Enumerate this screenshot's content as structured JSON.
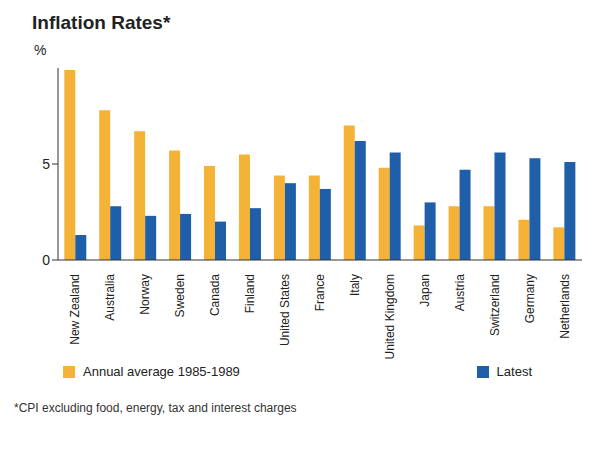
{
  "chart_data": {
    "type": "bar",
    "title": "Inflation Rates*",
    "y_label": "%",
    "footnote": "*CPI excluding food, energy, tax and interest charges",
    "categories": [
      "New Zealand",
      "Australia",
      "Norway",
      "Sweden",
      "Canada",
      "Finland",
      "United States",
      "France",
      "Italy",
      "United Kingdom",
      "Japan",
      "Austria",
      "Switzerland",
      "Germany",
      "Netherlands"
    ],
    "series": [
      {
        "name": "Annual average 1985-1989",
        "color": "#f4b336",
        "values": [
          9.9,
          7.8,
          6.7,
          5.7,
          4.9,
          5.5,
          4.4,
          4.4,
          7.0,
          4.8,
          1.8,
          2.8,
          2.8,
          2.1,
          1.7
        ]
      },
      {
        "name": "Latest",
        "color": "#1f5ea8",
        "values": [
          1.3,
          2.8,
          2.3,
          2.4,
          2.0,
          2.7,
          4.0,
          3.7,
          6.2,
          5.6,
          3.0,
          4.7,
          5.6,
          5.3,
          5.1
        ]
      }
    ],
    "ylim": [
      0,
      10
    ],
    "yticks": [
      0,
      5
    ],
    "grid": false,
    "legend": "bottom"
  }
}
